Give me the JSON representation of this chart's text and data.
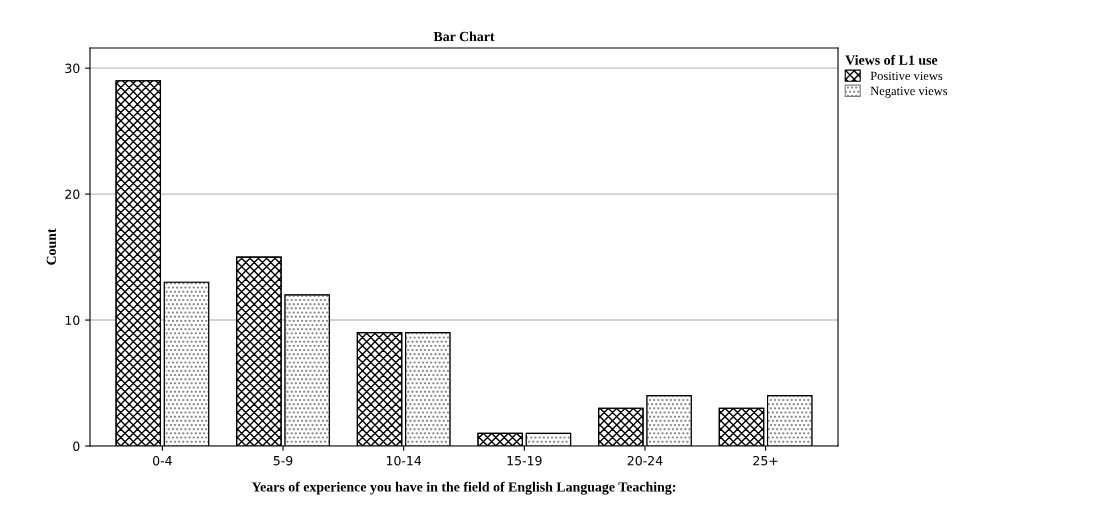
{
  "chart_data": {
    "type": "bar",
    "title": "Bar Chart",
    "xlabel": "Years of experience you have in the field of English Language Teaching:",
    "ylabel": "Count",
    "legend_title": "Views of L1 use",
    "categories": [
      "0-4",
      "5-9",
      "10-14",
      "15-19",
      "20-24",
      "25+"
    ],
    "series": [
      {
        "name": "Positive views",
        "color": "#000000",
        "values": [
          29,
          15,
          9,
          1,
          3,
          3
        ]
      },
      {
        "name": "Negative views",
        "color": "#808080",
        "values": [
          13,
          12,
          9,
          1,
          4,
          4
        ]
      }
    ],
    "ylim": [
      0,
      31.6
    ],
    "yticks": [
      0,
      10,
      20,
      30
    ],
    "grid": "y",
    "legend": "top right"
  }
}
